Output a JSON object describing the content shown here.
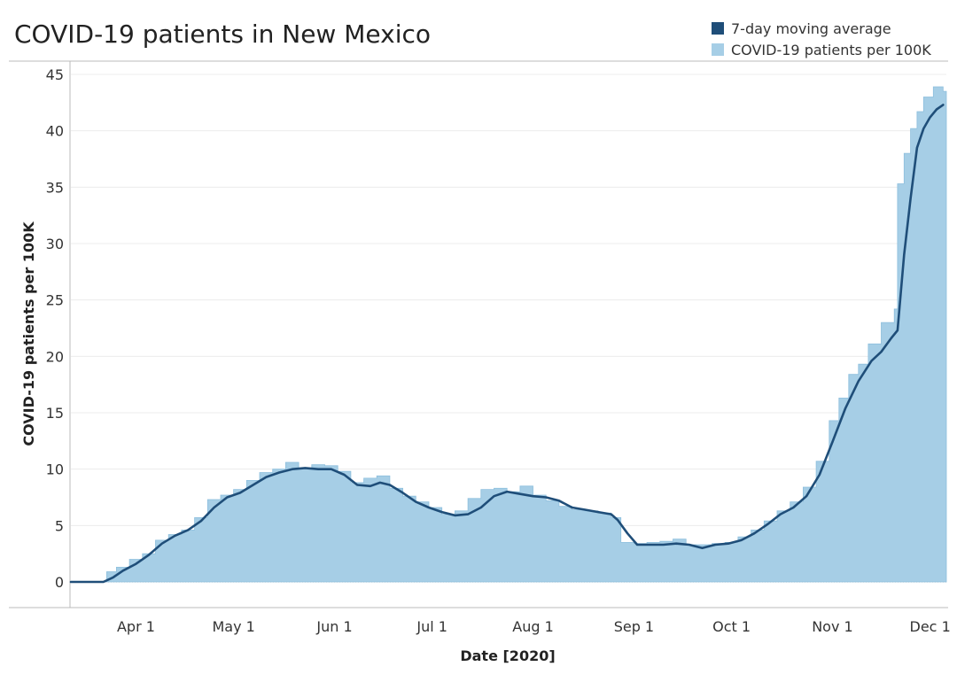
{
  "chart_data": {
    "type": "area",
    "title": "COVID-19 patients in New Mexico",
    "xlabel": "Date [2020]",
    "ylabel": "COVID-19 patients per 100K",
    "ylim": [
      0,
      45
    ],
    "y_ticks": [
      0,
      5,
      10,
      15,
      20,
      25,
      30,
      35,
      40,
      45
    ],
    "x_ticks": [
      {
        "label": "Apr 1",
        "date": "2020-04-01"
      },
      {
        "label": "May 1",
        "date": "2020-05-01"
      },
      {
        "label": "Jun 1",
        "date": "2020-06-01"
      },
      {
        "label": "Jul 1",
        "date": "2020-07-01"
      },
      {
        "label": "Aug 1",
        "date": "2020-08-01"
      },
      {
        "label": "Sep 1",
        "date": "2020-09-01"
      },
      {
        "label": "Oct 1",
        "date": "2020-10-01"
      },
      {
        "label": "Nov 1",
        "date": "2020-11-01"
      },
      {
        "label": "Dec 1",
        "date": "2020-12-01"
      }
    ],
    "xlim": [
      "2020-03-12",
      "2020-12-06"
    ],
    "grid": "horizontal",
    "legend": "top-right",
    "series": [
      {
        "name": "7-day moving average",
        "kind": "line",
        "color": "#1f4e79",
        "points": [
          [
            "2020-03-12",
            0
          ],
          [
            "2020-03-22",
            0
          ],
          [
            "2020-03-25",
            0.4
          ],
          [
            "2020-03-28",
            1.0
          ],
          [
            "2020-04-01",
            1.6
          ],
          [
            "2020-04-05",
            2.4
          ],
          [
            "2020-04-09",
            3.4
          ],
          [
            "2020-04-13",
            4.1
          ],
          [
            "2020-04-17",
            4.6
          ],
          [
            "2020-04-21",
            5.4
          ],
          [
            "2020-04-25",
            6.6
          ],
          [
            "2020-04-29",
            7.5
          ],
          [
            "2020-05-03",
            7.9
          ],
          [
            "2020-05-07",
            8.6
          ],
          [
            "2020-05-11",
            9.3
          ],
          [
            "2020-05-15",
            9.7
          ],
          [
            "2020-05-19",
            10.0
          ],
          [
            "2020-05-23",
            10.1
          ],
          [
            "2020-05-27",
            10.0
          ],
          [
            "2020-05-31",
            10.0
          ],
          [
            "2020-06-04",
            9.5
          ],
          [
            "2020-06-08",
            8.6
          ],
          [
            "2020-06-12",
            8.5
          ],
          [
            "2020-06-15",
            8.8
          ],
          [
            "2020-06-18",
            8.6
          ],
          [
            "2020-06-22",
            7.9
          ],
          [
            "2020-06-26",
            7.1
          ],
          [
            "2020-06-30",
            6.6
          ],
          [
            "2020-07-04",
            6.2
          ],
          [
            "2020-07-08",
            5.9
          ],
          [
            "2020-07-12",
            6.0
          ],
          [
            "2020-07-16",
            6.6
          ],
          [
            "2020-07-20",
            7.6
          ],
          [
            "2020-07-24",
            8.0
          ],
          [
            "2020-07-28",
            7.8
          ],
          [
            "2020-08-01",
            7.6
          ],
          [
            "2020-08-05",
            7.5
          ],
          [
            "2020-08-09",
            7.2
          ],
          [
            "2020-08-13",
            6.6
          ],
          [
            "2020-08-17",
            6.4
          ],
          [
            "2020-08-21",
            6.2
          ],
          [
            "2020-08-25",
            6.0
          ],
          [
            "2020-08-27",
            5.5
          ],
          [
            "2020-08-30",
            4.3
          ],
          [
            "2020-09-02",
            3.3
          ],
          [
            "2020-09-06",
            3.3
          ],
          [
            "2020-09-10",
            3.3
          ],
          [
            "2020-09-14",
            3.4
          ],
          [
            "2020-09-18",
            3.3
          ],
          [
            "2020-09-22",
            3.0
          ],
          [
            "2020-09-26",
            3.3
          ],
          [
            "2020-09-30",
            3.4
          ],
          [
            "2020-10-04",
            3.7
          ],
          [
            "2020-10-08",
            4.3
          ],
          [
            "2020-10-12",
            5.1
          ],
          [
            "2020-10-16",
            6.0
          ],
          [
            "2020-10-20",
            6.6
          ],
          [
            "2020-10-24",
            7.6
          ],
          [
            "2020-10-28",
            9.5
          ],
          [
            "2020-11-01",
            12.4
          ],
          [
            "2020-11-05",
            15.4
          ],
          [
            "2020-11-09",
            17.8
          ],
          [
            "2020-11-13",
            19.6
          ],
          [
            "2020-11-16",
            20.4
          ],
          [
            "2020-11-19",
            21.6
          ],
          [
            "2020-11-21",
            22.3
          ],
          [
            "2020-11-23",
            29.0
          ],
          [
            "2020-11-25",
            34.0
          ],
          [
            "2020-11-27",
            38.5
          ],
          [
            "2020-11-29",
            40.2
          ],
          [
            "2020-12-01",
            41.2
          ],
          [
            "2020-12-03",
            41.9
          ],
          [
            "2020-12-05",
            42.3
          ]
        ]
      },
      {
        "name": "COVID-19 patients per 100K",
        "kind": "area",
        "color": "#a6cee6",
        "points": [
          [
            "2020-03-12",
            0
          ],
          [
            "2020-03-22",
            0
          ],
          [
            "2020-03-23",
            0.9
          ],
          [
            "2020-03-26",
            1.3
          ],
          [
            "2020-03-30",
            2.0
          ],
          [
            "2020-04-03",
            2.5
          ],
          [
            "2020-04-07",
            3.7
          ],
          [
            "2020-04-11",
            4.2
          ],
          [
            "2020-04-15",
            4.6
          ],
          [
            "2020-04-19",
            5.7
          ],
          [
            "2020-04-23",
            7.3
          ],
          [
            "2020-04-27",
            7.7
          ],
          [
            "2020-05-01",
            8.2
          ],
          [
            "2020-05-05",
            9.0
          ],
          [
            "2020-05-09",
            9.7
          ],
          [
            "2020-05-13",
            10.0
          ],
          [
            "2020-05-17",
            10.6
          ],
          [
            "2020-05-21",
            10.1
          ],
          [
            "2020-05-25",
            10.4
          ],
          [
            "2020-05-29",
            10.3
          ],
          [
            "2020-06-02",
            9.8
          ],
          [
            "2020-06-06",
            8.8
          ],
          [
            "2020-06-10",
            9.2
          ],
          [
            "2020-06-14",
            9.4
          ],
          [
            "2020-06-18",
            8.3
          ],
          [
            "2020-06-22",
            7.6
          ],
          [
            "2020-06-26",
            7.1
          ],
          [
            "2020-06-30",
            6.6
          ],
          [
            "2020-07-04",
            6.0
          ],
          [
            "2020-07-08",
            6.3
          ],
          [
            "2020-07-12",
            7.4
          ],
          [
            "2020-07-16",
            8.2
          ],
          [
            "2020-07-20",
            8.3
          ],
          [
            "2020-07-24",
            8.0
          ],
          [
            "2020-07-28",
            8.5
          ],
          [
            "2020-08-01",
            7.7
          ],
          [
            "2020-08-05",
            7.2
          ],
          [
            "2020-08-09",
            6.7
          ],
          [
            "2020-08-13",
            6.4
          ],
          [
            "2020-08-17",
            6.3
          ],
          [
            "2020-08-21",
            6.1
          ],
          [
            "2020-08-25",
            5.7
          ],
          [
            "2020-08-28",
            3.5
          ],
          [
            "2020-09-01",
            3.4
          ],
          [
            "2020-09-05",
            3.5
          ],
          [
            "2020-09-09",
            3.6
          ],
          [
            "2020-09-13",
            3.8
          ],
          [
            "2020-09-17",
            3.3
          ],
          [
            "2020-09-21",
            3.3
          ],
          [
            "2020-09-25",
            3.4
          ],
          [
            "2020-09-29",
            3.5
          ],
          [
            "2020-10-03",
            4.0
          ],
          [
            "2020-10-07",
            4.6
          ],
          [
            "2020-10-11",
            5.4
          ],
          [
            "2020-10-15",
            6.3
          ],
          [
            "2020-10-19",
            7.1
          ],
          [
            "2020-10-23",
            8.4
          ],
          [
            "2020-10-27",
            10.7
          ],
          [
            "2020-10-31",
            14.3
          ],
          [
            "2020-11-03",
            16.3
          ],
          [
            "2020-11-06",
            18.4
          ],
          [
            "2020-11-09",
            19.3
          ],
          [
            "2020-11-12",
            21.1
          ],
          [
            "2020-11-16",
            23.0
          ],
          [
            "2020-11-20",
            24.2
          ],
          [
            "2020-11-21",
            35.3
          ],
          [
            "2020-11-23",
            38.0
          ],
          [
            "2020-11-25",
            40.2
          ],
          [
            "2020-11-27",
            41.7
          ],
          [
            "2020-11-29",
            43.0
          ],
          [
            "2020-12-02",
            43.9
          ],
          [
            "2020-12-05",
            43.5
          ]
        ]
      }
    ]
  }
}
